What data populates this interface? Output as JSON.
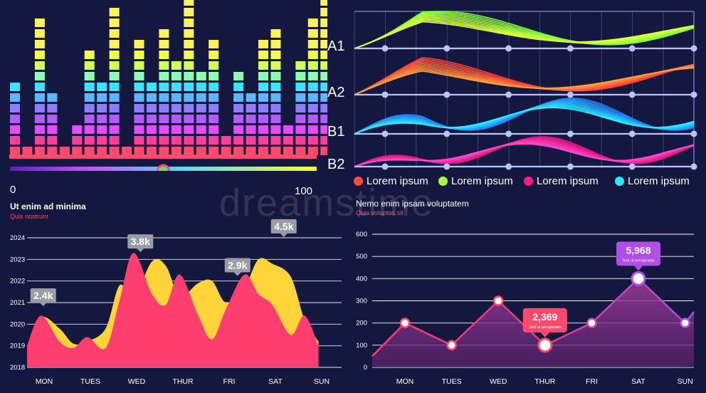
{
  "equalizer": {
    "slider_min": "0",
    "slider_max": "100",
    "slider_value": 0.5,
    "column_heights": [
      7,
      1,
      13,
      6,
      1,
      3,
      10,
      7,
      14,
      1,
      11,
      7,
      12,
      9,
      15,
      8,
      11,
      2,
      8,
      6,
      11,
      12,
      3,
      9,
      13,
      16,
      4,
      11,
      5,
      10,
      4
    ]
  },
  "waves": {
    "rows": [
      {
        "label": "A1",
        "colors": [
          "#7dff3a",
          "#e8ff40"
        ]
      },
      {
        "label": "A2",
        "colors": [
          "#ff3d3d",
          "#ffa338"
        ]
      },
      {
        "label": "B1",
        "colors": [
          "#1e7fff",
          "#2df0ff"
        ]
      },
      {
        "label": "B2",
        "colors": [
          "#e0127a",
          "#ff4ad1"
        ]
      }
    ]
  },
  "legend": [
    {
      "label": "Lorem ipsum",
      "color": "#ff4a3d"
    },
    {
      "label": "Lorem ipsum",
      "color": "#a5ff3a"
    },
    {
      "label": "Lorem ipsum",
      "color": "#ff1a8c"
    },
    {
      "label": "Lorem ipsum",
      "color": "#2ee6ff"
    }
  ],
  "watermark": "dreamstime",
  "chart_data": [
    {
      "type": "area",
      "title": "Ut enim ad minima",
      "subtitle": "Quis nostrum",
      "categories": [
        "MON",
        "TUES",
        "WED",
        "THUR",
        "FRI",
        "SAT",
        "SUN"
      ],
      "y_ticks": [
        "2018",
        "2019",
        "2020",
        "2021",
        "2022",
        "2023",
        "2024"
      ],
      "ylim": [
        2018,
        2024
      ],
      "series": [
        {
          "color": "#ffd43b",
          "x": [
            0,
            0.3,
            0.7,
            1.0,
            1.3,
            1.7,
            2.0,
            2.3,
            2.7,
            3.0,
            3.3,
            3.7,
            4.0,
            4.3,
            4.7,
            5.0,
            5.3,
            5.7,
            6.0,
            6.3
          ],
          "y": [
            2018.8,
            2020.3,
            2019.8,
            2019.1,
            2019.2,
            2019.8,
            2021.8,
            2021.2,
            2022.9,
            2022.7,
            2021.3,
            2021.9,
            2022.0,
            2021.0,
            2021.7,
            2023.0,
            2022.8,
            2022.2,
            2020.2,
            2019.2
          ]
        },
        {
          "color": "#ff3d6e",
          "x": [
            0,
            0.3,
            0.7,
            1.0,
            1.3,
            1.7,
            2.0,
            2.3,
            2.7,
            3.0,
            3.3,
            3.7,
            4.0,
            4.3,
            4.7,
            5.0,
            5.3,
            5.7,
            6.0,
            6.3
          ],
          "y": [
            2019.0,
            2020.4,
            2019.2,
            2018.9,
            2019.4,
            2018.9,
            2021.1,
            2023.3,
            2021.4,
            2020.9,
            2022.3,
            2020.4,
            2019.3,
            2020.7,
            2022.3,
            2021.4,
            2020.9,
            2019.5,
            2020.4,
            2019.0
          ]
        }
      ],
      "annotations": [
        {
          "text": "2.4k",
          "x": 0.35,
          "y": 2021.0
        },
        {
          "text": "3.8k",
          "x": 2.45,
          "y": 2023.5
        },
        {
          "text": "2.9k",
          "x": 4.55,
          "y": 2022.4
        },
        {
          "text": "4.5k",
          "x": 5.55,
          "y": 2024.2
        }
      ]
    },
    {
      "type": "line",
      "title": "Nemo enim ipsam voluptatem",
      "subtitle": "Quia voluptas sit",
      "categories": [
        "MON",
        "TUES",
        "WED",
        "THUR",
        "FRI",
        "SAT",
        "SUN"
      ],
      "y_ticks": [
        0,
        100,
        200,
        300,
        400,
        500,
        600
      ],
      "ylim": [
        0,
        600
      ],
      "series": [
        {
          "values": [
            200,
            100,
            300,
            100,
            200,
            400,
            200
          ]
        }
      ],
      "line_start": 50,
      "line_end": 250,
      "callouts": [
        {
          "index": 3,
          "value": "2,369",
          "sub": "Sed ut perspiciatis",
          "color": "#ff4a6e"
        },
        {
          "index": 5,
          "value": "5,968",
          "sub": "Sed ut perspiciatis",
          "color": "#b04ee8"
        }
      ]
    }
  ]
}
